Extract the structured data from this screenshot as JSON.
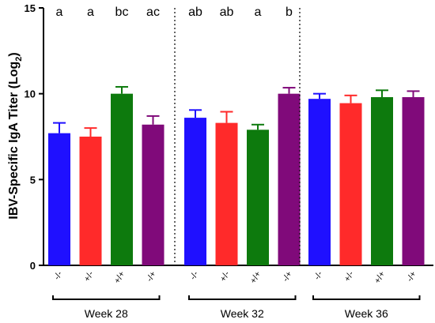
{
  "chart_data": {
    "type": "bar",
    "ylabel": "IBV-Specific IgA Titer (Log",
    "ylabel_sub": "2",
    "ylabel_close": ")",
    "ylim": [
      0,
      15
    ],
    "yticks": [
      0,
      5,
      10,
      15
    ],
    "groups": [
      {
        "label": "Week 28",
        "bars": [
          {
            "category": "-/-",
            "value": 7.7,
            "error": 0.6,
            "sig": "a",
            "color": "#1f10ff"
          },
          {
            "category": "+/-",
            "value": 7.5,
            "error": 0.5,
            "sig": "a",
            "color": "#ff2a2a"
          },
          {
            "category": "+/+",
            "value": 10.0,
            "error": 0.4,
            "sig": "bc",
            "color": "#0d7a0d"
          },
          {
            "category": "-/+",
            "value": 8.2,
            "error": 0.5,
            "sig": "ac",
            "color": "#800a7a"
          }
        ]
      },
      {
        "label": "Week 32",
        "bars": [
          {
            "category": "-/-",
            "value": 8.6,
            "error": 0.45,
            "sig": "ab",
            "color": "#1f10ff"
          },
          {
            "category": "+/-",
            "value": 8.3,
            "error": 0.65,
            "sig": "ab",
            "color": "#ff2a2a"
          },
          {
            "category": "+/+",
            "value": 7.9,
            "error": 0.3,
            "sig": "a",
            "color": "#0d7a0d"
          },
          {
            "category": "-/+",
            "value": 10.0,
            "error": 0.35,
            "sig": "b",
            "color": "#800a7a"
          }
        ]
      },
      {
        "label": "Week 36",
        "bars": [
          {
            "category": "-/-",
            "value": 9.7,
            "error": 0.3,
            "sig": "",
            "color": "#1f10ff"
          },
          {
            "category": "+/-",
            "value": 9.45,
            "error": 0.45,
            "sig": "",
            "color": "#ff2a2a"
          },
          {
            "category": "+/+",
            "value": 9.8,
            "error": 0.4,
            "sig": "",
            "color": "#0d7a0d"
          },
          {
            "category": "-/+",
            "value": 9.8,
            "error": 0.35,
            "sig": "",
            "color": "#800a7a"
          }
        ]
      }
    ],
    "separators": "dotted",
    "grid": false
  }
}
